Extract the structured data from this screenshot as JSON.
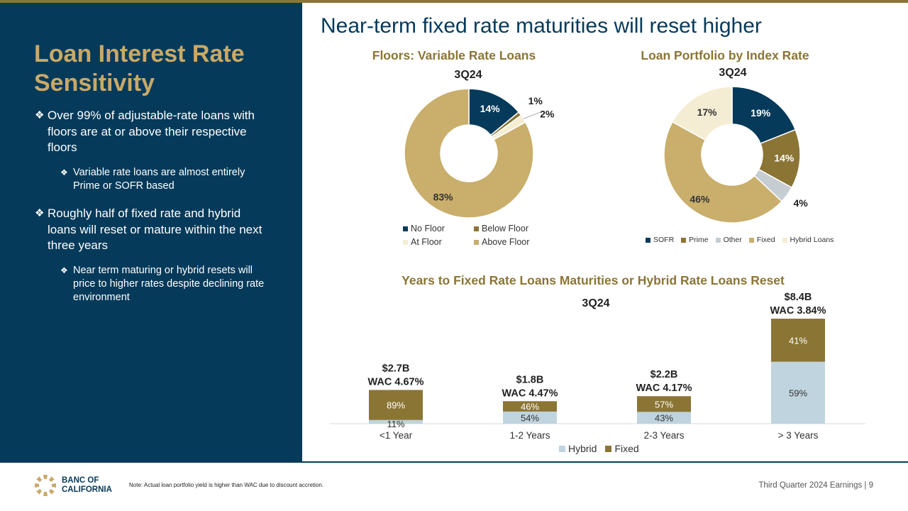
{
  "page": {
    "main_title": "Near-term fixed rate maturities will reset higher",
    "footer": "Third Quarter 2024 Earnings |  9",
    "note": "Note: Actual loan portfolio yield is higher than WAC due to discount accretion."
  },
  "brand": {
    "name_line1": "BANC OF",
    "name_line2": "CALIFORNIA",
    "colors": {
      "navy": "#053A5A",
      "gold": "#C9A968",
      "olive": "#8B7535"
    }
  },
  "sidebar": {
    "title": "Loan Interest Rate Sensitivity",
    "bullet_icon": "diamond-bullet-icon",
    "bullets": [
      {
        "text": "Over 99% of adjustable-rate loans with floors are at or above their respective floors",
        "sub": "Variable rate loans are almost entirely Prime or SOFR based"
      },
      {
        "text": "Roughly half of fixed rate and hybrid loans will reset or mature within the next three years",
        "sub": "Near term maturing or hybrid resets will price to higher rates despite declining rate environment"
      }
    ]
  },
  "chart_data": [
    {
      "type": "pie",
      "title": "Floors: Variable Rate Loans",
      "subtitle": "3Q24",
      "labels": [
        "No Floor",
        "Below Floor",
        "At Floor",
        "Above Floor"
      ],
      "values": [
        14,
        1,
        2,
        83
      ],
      "value_labels": [
        "14%",
        "1%",
        "2%",
        "83%"
      ],
      "colors": [
        "#053A5A",
        "#8B7535",
        "#F5EDD3",
        "#C9AE6C"
      ],
      "legend": "bottom"
    },
    {
      "type": "pie",
      "title": "Loan Portfolio by Index Rate",
      "subtitle": "3Q24",
      "labels": [
        "SOFR",
        "Prime",
        "Other",
        "Fixed",
        "Hybrid Loans"
      ],
      "values": [
        19,
        14,
        4,
        46,
        17
      ],
      "value_labels": [
        "19%",
        "14%",
        "4%",
        "46%",
        "17%"
      ],
      "colors": [
        "#053A5A",
        "#8B7535",
        "#C5CDD3",
        "#C9AE6C",
        "#F5EDD3"
      ],
      "legend": "bottom"
    },
    {
      "type": "bar",
      "stacked": true,
      "title": "Years to Fixed Rate Loans Maturities or Hybrid Rate Loans Reset",
      "subtitle": "3Q24",
      "categories": [
        "<1 Year",
        "1-2 Years",
        "2-3 Years",
        "> 3 Years"
      ],
      "totals_billions": [
        2.7,
        1.8,
        2.2,
        8.4
      ],
      "total_labels": [
        "$2.7B",
        "$1.8B",
        "$2.2B",
        "$8.4B"
      ],
      "wac_labels": [
        "WAC 4.67%",
        "WAC 4.47%",
        "WAC 4.17%",
        "WAC 3.84%"
      ],
      "series": [
        {
          "name": "Hybrid",
          "color": "#BFD4DE",
          "percent": [
            11,
            54,
            43,
            59
          ],
          "labels": [
            "11%",
            "54%",
            "43%",
            "59%"
          ]
        },
        {
          "name": "Fixed",
          "color": "#8B7535",
          "percent": [
            89,
            46,
            57,
            41
          ],
          "labels": [
            "89%",
            "46%",
            "57%",
            "41%"
          ]
        }
      ],
      "legend": "bottom"
    }
  ]
}
